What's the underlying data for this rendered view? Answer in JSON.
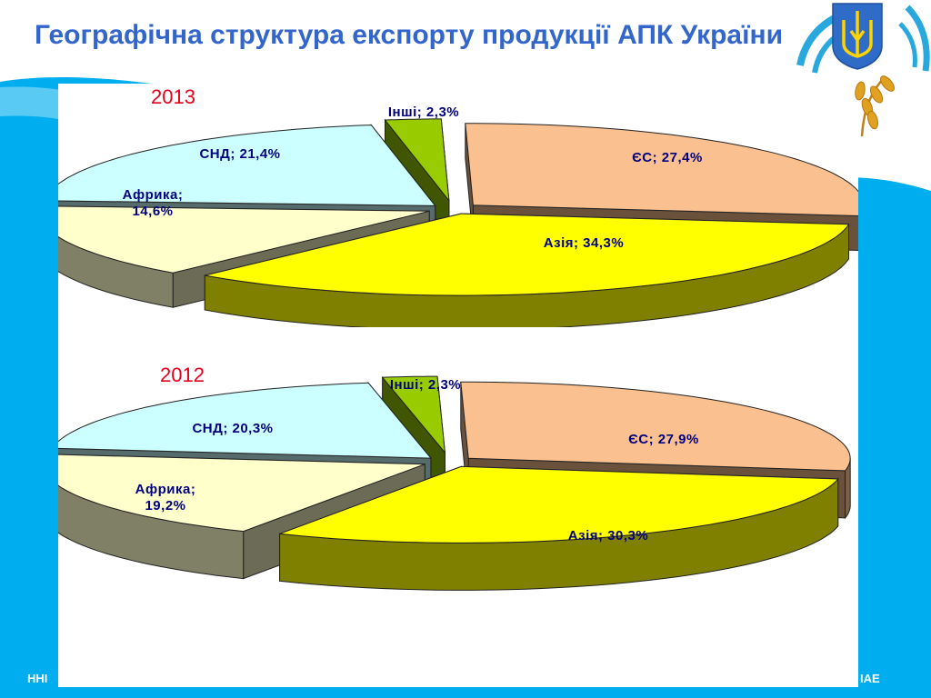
{
  "slide": {
    "title": "Географічна структура експорту продукції АПК України",
    "footer_left": "ННІ",
    "footer_right": "ІАЕ"
  },
  "colors": {
    "title": "#3366CC",
    "year": "#E8001C",
    "label": "#000080",
    "background_band": "#00AEEF",
    "slice_eu": "#FAC090",
    "slice_asia": "#FFFF00",
    "slice_africa": "#FFFFCC",
    "slice_cis": "#CCFFFF",
    "slice_other": "#99CC00"
  },
  "chart_data": [
    {
      "type": "pie",
      "title": "2013",
      "slices": [
        {
          "label": "ЄС; 27,4%",
          "name": "ЄС",
          "value": 27.4,
          "color": "#FAC090"
        },
        {
          "label": "Азія; 34,3%",
          "name": "Азія",
          "value": 34.3,
          "color": "#FFFF00"
        },
        {
          "label": "Африка;\n14,6%",
          "name": "Африка",
          "value": 14.6,
          "color": "#FFFFCC"
        },
        {
          "label": "СНД; 21,4%",
          "name": "СНД",
          "value": 21.4,
          "color": "#CCFFFF"
        },
        {
          "label": "Інші; 2,3%",
          "name": "Інші",
          "value": 2.3,
          "color": "#99CC00"
        }
      ]
    },
    {
      "type": "pie",
      "title": "2012",
      "slices": [
        {
          "label": "ЄС; 27,9%",
          "name": "ЄС",
          "value": 27.9,
          "color": "#FAC090"
        },
        {
          "label": "Азія; 30,3%",
          "name": "Азія",
          "value": 30.3,
          "color": "#FFFF00"
        },
        {
          "label": "Африка;\n19,2%",
          "name": "Африка",
          "value": 19.2,
          "color": "#FFFFCC"
        },
        {
          "label": "СНД; 20,3%",
          "name": "СНД",
          "value": 20.3,
          "color": "#CCFFFF"
        },
        {
          "label": "Інші; 2,3%",
          "name": "Інші",
          "value": 2.3,
          "color": "#99CC00"
        }
      ]
    }
  ]
}
